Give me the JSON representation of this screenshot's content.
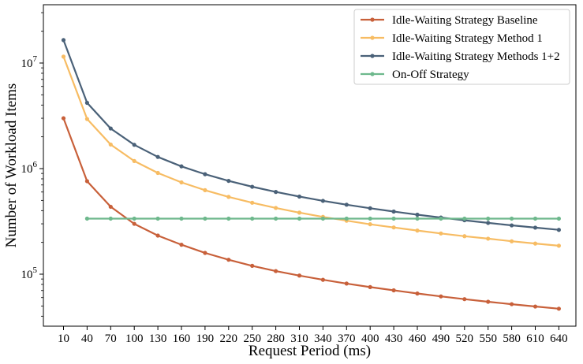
{
  "chart_data": {
    "type": "line",
    "title": "",
    "xlabel": "Request Period (ms)",
    "ylabel": "Number of Workload Items",
    "yscale": "log",
    "ylim": [
      35000,
      30000000
    ],
    "grid": false,
    "legend_position": "top-right",
    "x": [
      10,
      40,
      70,
      100,
      130,
      160,
      190,
      220,
      250,
      280,
      310,
      340,
      370,
      400,
      430,
      460,
      490,
      520,
      550,
      580,
      610,
      640
    ],
    "x_tick_labels": [
      "10",
      "40",
      "70",
      "100",
      "130",
      "160",
      "190",
      "220",
      "250",
      "280",
      "310",
      "340",
      "370",
      "400",
      "430",
      "460",
      "490",
      "520",
      "550",
      "580",
      "610",
      "640"
    ],
    "y_tick_labels": [
      {
        "value": 100000,
        "base": "10",
        "exp": "5"
      },
      {
        "value": 1000000,
        "base": "10",
        "exp": "6"
      },
      {
        "value": 10000000,
        "base": "10",
        "exp": "7"
      }
    ],
    "series": [
      {
        "name": "Idle-Waiting Strategy Baseline",
        "color": "#c8603a",
        "x": [
          10,
          40,
          70,
          100,
          130,
          160,
          190,
          220,
          250,
          280,
          310,
          340,
          370,
          400,
          430,
          460,
          490,
          520,
          550,
          580,
          610,
          640
        ],
        "values": [
          3000000,
          760000,
          435000,
          300000,
          232000,
          190000,
          159000,
          137000,
          120000,
          107000,
          97000,
          88500,
          81500,
          75500,
          70300,
          65600,
          61600,
          58000,
          54800,
          52000,
          49400,
          47100
        ]
      },
      {
        "name": "Idle-Waiting Strategy Method 1",
        "color": "#f7bc63",
        "x": [
          10,
          40,
          70,
          100,
          130,
          160,
          190,
          220,
          250,
          280,
          310,
          340,
          370,
          400,
          430,
          460,
          490,
          520,
          550,
          580,
          610,
          640
        ],
        "values": [
          11500000,
          2950000,
          1690000,
          1180000,
          910000,
          740000,
          625000,
          540000,
          475000,
          424000,
          383000,
          349000,
          321000,
          297000,
          277000,
          259000,
          243000,
          229000,
          217000,
          205000,
          195000,
          186000
        ]
      },
      {
        "name": "Idle-Waiting Strategy Methods 1+2",
        "color": "#4a6178",
        "x": [
          10,
          40,
          70,
          100,
          130,
          160,
          190,
          220,
          250,
          280,
          310,
          340,
          370,
          400,
          430,
          460,
          490,
          520,
          550,
          580,
          610,
          640
        ],
        "values": [
          16500000,
          4200000,
          2400000,
          1680000,
          1290000,
          1050000,
          885000,
          765000,
          673000,
          601000,
          543000,
          495000,
          455000,
          421000,
          392000,
          366000,
          344000,
          324000,
          306000,
          290000,
          276000,
          263000
        ]
      },
      {
        "name": "On-Off Strategy",
        "color": "#6db88c",
        "x": [
          40,
          70,
          100,
          130,
          160,
          190,
          220,
          250,
          280,
          310,
          340,
          370,
          400,
          430,
          460,
          490,
          520,
          550,
          580,
          610,
          640
        ],
        "values": [
          336000,
          336000,
          336000,
          336000,
          336000,
          336000,
          336000,
          336000,
          336000,
          336000,
          336000,
          336000,
          336000,
          336000,
          336000,
          336000,
          336000,
          336000,
          336000,
          336000,
          336000
        ]
      }
    ]
  }
}
